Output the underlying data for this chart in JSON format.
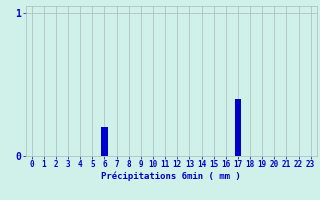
{
  "title": "",
  "xlabel": "Précipitations 6min ( mm )",
  "hours": [
    0,
    1,
    2,
    3,
    4,
    5,
    6,
    7,
    8,
    9,
    10,
    11,
    12,
    13,
    14,
    15,
    16,
    17,
    18,
    19,
    20,
    21,
    22,
    23
  ],
  "values": [
    0,
    0,
    0,
    0,
    0,
    0,
    0.2,
    0,
    0,
    0,
    0,
    0,
    0,
    0,
    0,
    0,
    0,
    0.4,
    0,
    0,
    0,
    0,
    0,
    0
  ],
  "bar_color": "#0000cc",
  "background_color": "#d0f0ea",
  "grid_color": "#b0b8b8",
  "axis_label_color": "#0000cc",
  "tick_label_color": "#0000cc",
  "ylim": [
    0,
    1.05
  ],
  "yticks": [
    0,
    1
  ],
  "ytick_labels": [
    "0",
    "1"
  ],
  "xlim": [
    -0.5,
    23.5
  ],
  "xlabel_fontsize": 6.5,
  "tick_fontsize": 5.5,
  "ytick_fontsize": 7.0,
  "bar_width": 0.5
}
